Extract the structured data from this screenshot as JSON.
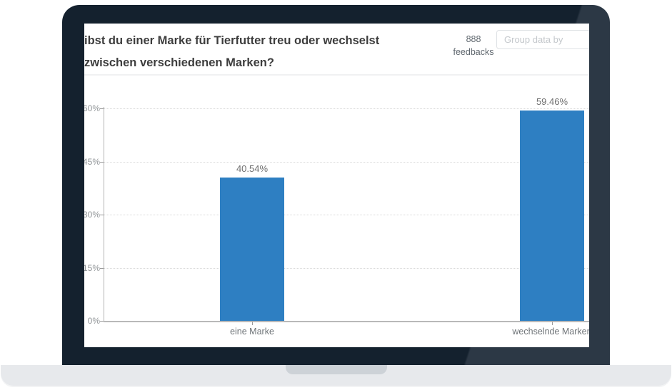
{
  "header": {
    "title_line1": "ibst du einer Marke für Tierfutter treu oder wechselst",
    "title_line2": "zwischen verschiedenen Marken?",
    "feedback_count": "888",
    "feedback_label": "feedbacks",
    "group_by_placeholder": "Group data by"
  },
  "chart_data": {
    "type": "bar",
    "title": "ibst du einer Marke für Tierfutter treu oder wechselst zwischen verschiedenen Marken?",
    "categories": [
      "eine Marke",
      "wechselnde Marken"
    ],
    "values": [
      40.54,
      59.46
    ],
    "value_labels": [
      "40.54%",
      "59.46%"
    ],
    "xlabel": "",
    "ylabel": "",
    "ylim": [
      0,
      60
    ],
    "yticks": [
      0,
      15,
      30,
      45,
      60
    ],
    "ytick_labels": [
      "0%",
      "15%",
      "30%",
      "45%",
      "60%"
    ],
    "grid": "horizontal-dotted",
    "legend": "none",
    "bar_color": "#2e7fc2"
  },
  "colors": {
    "bezel_dark": "#14212e",
    "bezel_light": "#2c3845",
    "base": "#e7e9ec",
    "notch": "#cdd2d7",
    "accent_blue": "#2e7fc2"
  }
}
